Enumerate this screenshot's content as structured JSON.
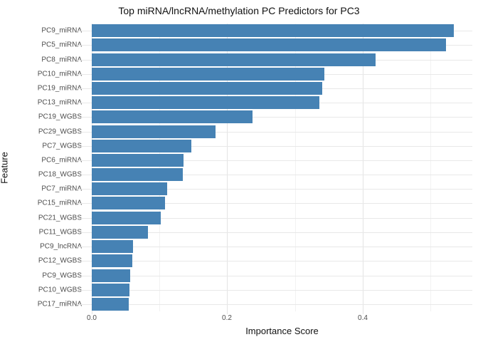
{
  "chart_data": {
    "type": "bar",
    "orientation": "horizontal",
    "title": "Top miRNA/lncRNA/methylation PC Predictors for PC3",
    "xlabel": "Importance Score",
    "ylabel": "Feature",
    "categories": [
      "PC9_miRNA",
      "PC5_miRNA",
      "PC8_miRNA",
      "PC10_miRNA",
      "PC19_miRNA",
      "PC13_miRNA",
      "PC19_WGBS",
      "PC29_WGBS",
      "PC7_WGBS",
      "PC6_miRNA",
      "PC18_WGBS",
      "PC7_miRNA",
      "PC15_miRNA",
      "PC21_WGBS",
      "PC11_WGBS",
      "PC9_lncRNA",
      "PC12_WGBS",
      "PC9_WGBS",
      "PC10_WGBS",
      "PC17_miRNA"
    ],
    "values": [
      0.535,
      0.523,
      0.419,
      0.344,
      0.34,
      0.336,
      0.237,
      0.183,
      0.147,
      0.135,
      0.134,
      0.111,
      0.108,
      0.102,
      0.083,
      0.061,
      0.06,
      0.057,
      0.056,
      0.055
    ],
    "xlim": [
      0,
      0.562
    ],
    "x_major_ticks": [
      0.0,
      0.2,
      0.4
    ],
    "x_major_tick_labels": [
      "0.0",
      "0.2",
      "0.4"
    ],
    "x_minor_ticks": [
      0.1,
      0.3,
      0.5
    ],
    "grid": true,
    "legend": false,
    "bar_color": "#4682b4",
    "grid_major_color": "#e4e4e4",
    "grid_minor_color": "#f2f2f2",
    "tick_text_color": "#4d4d4d"
  }
}
